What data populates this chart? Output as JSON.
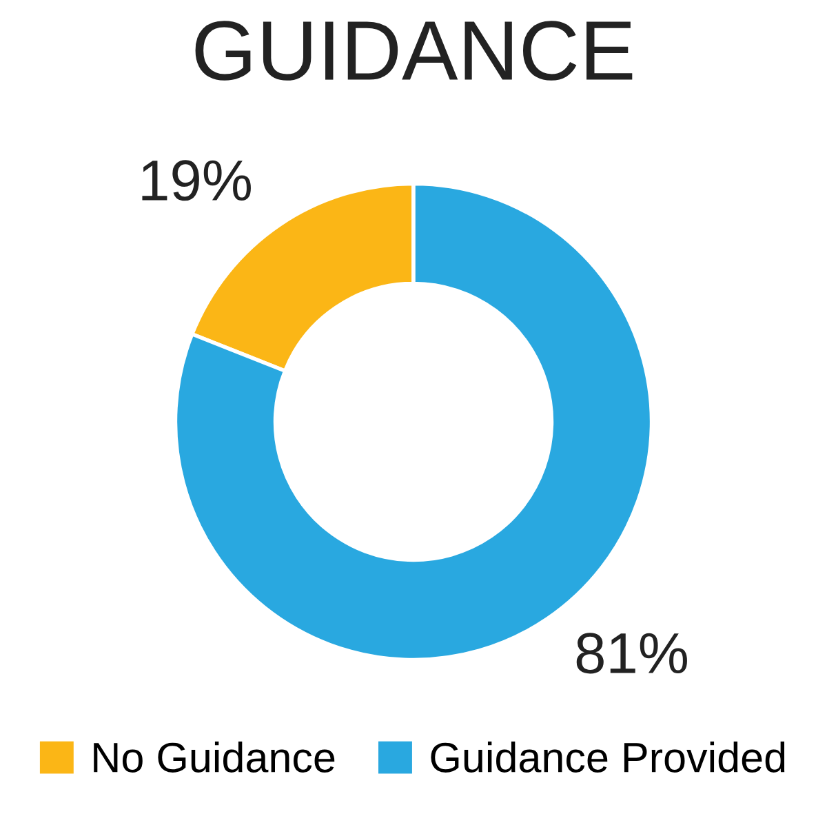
{
  "chart_data": {
    "type": "donut",
    "title": "GUIDANCE",
    "categories": [
      "No Guidance",
      "Guidance Provided"
    ],
    "values": [
      19,
      81
    ],
    "colors": [
      "#fbb616",
      "#29a8e0"
    ],
    "value_labels": [
      "19%",
      "81%"
    ],
    "legend": "bottom"
  }
}
